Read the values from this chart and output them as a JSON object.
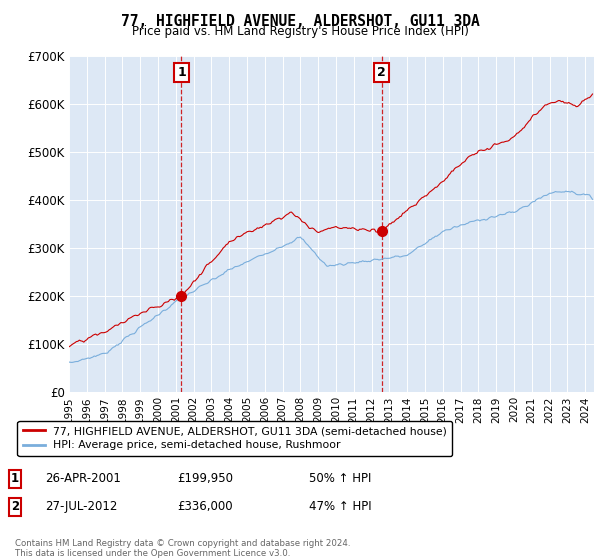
{
  "title": "77, HIGHFIELD AVENUE, ALDERSHOT, GU11 3DA",
  "subtitle": "Price paid vs. HM Land Registry's House Price Index (HPI)",
  "legend_line1": "77, HIGHFIELD AVENUE, ALDERSHOT, GU11 3DA (semi-detached house)",
  "legend_line2": "HPI: Average price, semi-detached house, Rushmoor",
  "footer": "Contains HM Land Registry data © Crown copyright and database right 2024.\nThis data is licensed under the Open Government Licence v3.0.",
  "red_color": "#cc0000",
  "blue_color": "#7aaedc",
  "background_color": "#dde8f5",
  "ylim": [
    0,
    700000
  ],
  "yticks": [
    0,
    100000,
    200000,
    300000,
    400000,
    500000,
    600000,
    700000
  ],
  "ytick_labels": [
    "£0",
    "£100K",
    "£200K",
    "£300K",
    "£400K",
    "£500K",
    "£600K",
    "£700K"
  ],
  "vline1_x": 2001.32,
  "vline2_x": 2012.57,
  "marker1_x": 2001.32,
  "marker1_y": 199950,
  "marker2_x": 2012.57,
  "marker2_y": 336000,
  "xmin": 1995.0,
  "xmax": 2024.5
}
